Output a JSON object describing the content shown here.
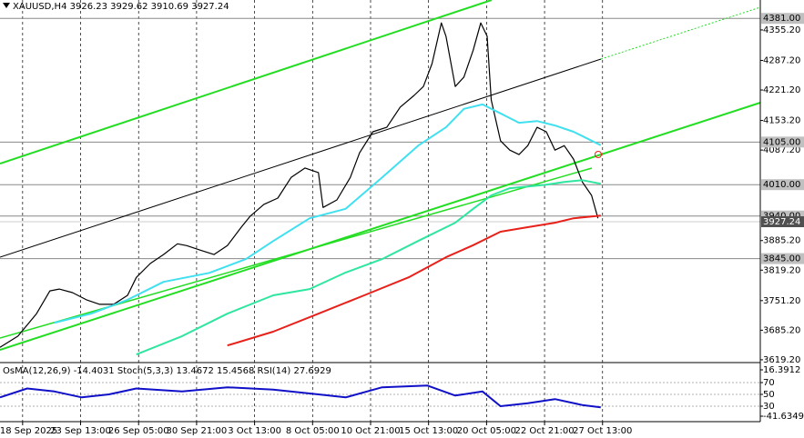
{
  "chart_data": [
    {
      "type": "line",
      "title": "XAUUSD,H4  3926.23 3929.62 3910.69 3927.24",
      "xlim": [
        -0.39,
        12.72
      ],
      "xticks": [
        {
          "value": 0,
          "label": "18 Sep 2025"
        },
        {
          "value": 1,
          "label": "23 Sep 13:00"
        },
        {
          "value": 2,
          "label": "26 Sep 05:00"
        },
        {
          "value": 3,
          "label": "30 Sep 21:00"
        },
        {
          "value": 4,
          "label": "3 Oct 13:00"
        },
        {
          "value": 5,
          "label": "8 Oct 05:00"
        },
        {
          "value": 6,
          "label": "10 Oct 21:00"
        },
        {
          "value": 7,
          "label": "15 Oct 13:00"
        },
        {
          "value": 8,
          "label": "20 Oct 05:00"
        },
        {
          "value": 9,
          "label": "22 Oct 21:00"
        },
        {
          "value": 10,
          "label": "27 Oct 13:00"
        }
      ],
      "ylim": [
        3615,
        4422
      ],
      "yticks": [
        {
          "value": 4355.2,
          "label": "4355.20"
        },
        {
          "value": 4287.2,
          "label": "4287.20"
        },
        {
          "value": 4221.2,
          "label": "4221.20"
        },
        {
          "value": 4153.2,
          "label": "4153.20"
        },
        {
          "value": 4087.2,
          "label": "4087.20"
        },
        {
          "value": 3885.2,
          "label": "3885.20"
        },
        {
          "value": 3819.2,
          "label": "3819.20"
        },
        {
          "value": 3751.2,
          "label": "3751.20"
        },
        {
          "value": 3685.2,
          "label": "3685.20"
        },
        {
          "value": 3619.2,
          "label": "3619.20"
        }
      ],
      "grid": true,
      "levels": [
        {
          "value": 4381,
          "label": "4381.00"
        },
        {
          "value": 4105,
          "label": "4105.00"
        },
        {
          "value": 4010,
          "label": "4010.00"
        },
        {
          "value": 3940,
          "label": "3940.00"
        },
        {
          "value": 3845,
          "label": "3845.00"
        }
      ],
      "current_price": {
        "value": 3927.24,
        "label": "3927.24"
      },
      "series": [
        {
          "name": "XAUUSD",
          "color": "#000000",
          "x": [
            -0.39,
            -0.08,
            0.24,
            0.47,
            0.63,
            0.86,
            1.1,
            1.33,
            1.57,
            1.81,
            1.96,
            2.2,
            2.43,
            2.67,
            2.83,
            3.06,
            3.3,
            3.53,
            3.77,
            3.92,
            4.16,
            4.4,
            4.63,
            4.87,
            5.1,
            5.18,
            5.42,
            5.65,
            5.81,
            6.04,
            6.28,
            6.51,
            6.75,
            6.91,
            7.06,
            7.22,
            7.3,
            7.46,
            7.61,
            7.77,
            7.9,
            8.01,
            8.08,
            8.24,
            8.4,
            8.56,
            8.71,
            8.87,
            9.03,
            9.18,
            9.34,
            9.5,
            9.65,
            9.81,
            9.92
          ],
          "values": [
            3647,
            3672,
            3722,
            3773,
            3777,
            3769,
            3753,
            3743,
            3743,
            3763,
            3803,
            3834,
            3854,
            3878,
            3874,
            3864,
            3854,
            3874,
            3915,
            3939,
            3966,
            3980,
            4026,
            4047,
            4037,
            3959,
            3976,
            4026,
            4081,
            4128,
            4138,
            4183,
            4209,
            4229,
            4280,
            4371,
            4341,
            4229,
            4250,
            4310,
            4371,
            4341,
            4199,
            4108,
            4087,
            4077,
            4097,
            4138,
            4128,
            4087,
            4097,
            4067,
            4016,
            3986,
            3935
          ]
        },
        {
          "name": "MA fast",
          "color": "#40e0f0",
          "x": [
            0.55,
            1.18,
            1.81,
            2.43,
            3.22,
            3.85,
            4.32,
            4.95,
            5.57,
            6.2,
            6.83,
            7.3,
            7.61,
            7.93,
            8.24,
            8.56,
            8.87,
            9.18,
            9.5,
            9.97
          ],
          "values": [
            3702,
            3722,
            3753,
            3793,
            3813,
            3844,
            3884,
            3935,
            3956,
            4026,
            4098,
            4138,
            4179,
            4189,
            4169,
            4148,
            4152,
            4142,
            4128,
            4098
          ]
        },
        {
          "name": "MA medium",
          "color": "#2ee6a0",
          "x": [
            1.96,
            2.75,
            3.53,
            4.32,
            4.95,
            5.57,
            6.2,
            6.83,
            7.46,
            7.77,
            8.08,
            8.4,
            8.71,
            9.03,
            9.34,
            9.65,
            9.97
          ],
          "values": [
            3631,
            3672,
            3722,
            3763,
            3777,
            3814,
            3844,
            3885,
            3925,
            3956,
            3986,
            4002,
            4006,
            4010,
            4016,
            4020,
            4012
          ]
        },
        {
          "name": "MA slow",
          "color": "#e8201a",
          "x": [
            3.53,
            4.32,
            5.1,
            5.89,
            6.67,
            7.3,
            7.77,
            8.24,
            8.71,
            9.18,
            9.5,
            9.97
          ],
          "values": [
            3651,
            3682,
            3722,
            3763,
            3804,
            3848,
            3875,
            3905,
            3915,
            3925,
            3935,
            3941
          ]
        }
      ]
    },
    {
      "type": "line",
      "title": "OsMA(12,26,9) -14.4031  Stoch(5,3,3) 13.4672 15.4568  RSI(14) 27.6929",
      "xlim": [
        -0.39,
        12.72
      ],
      "ylim": [
        0,
        100
      ],
      "yticks": [
        30,
        50,
        70
      ],
      "y2lim": [
        -41.6349,
        16.3912
      ],
      "y2ticks": [
        {
          "value": 16.3912,
          "label": "16.3912"
        },
        {
          "value": -41.6349,
          "label": "-41.6349"
        }
      ],
      "series": [
        {
          "name": "RSI(14)",
          "color": "#1010c8",
          "x": [
            -0.39,
            0.08,
            0.55,
            1.02,
            1.49,
            1.96,
            2.75,
            3.53,
            4.32,
            5.1,
            5.57,
            6.2,
            6.98,
            7.46,
            7.93,
            8.24,
            8.71,
            9.18,
            9.65,
            9.97
          ],
          "values": [
            45,
            60,
            55,
            45,
            50,
            60,
            55,
            62,
            58,
            50,
            45,
            62,
            65,
            48,
            55,
            30,
            35,
            42,
            32,
            28
          ]
        }
      ]
    }
  ]
}
